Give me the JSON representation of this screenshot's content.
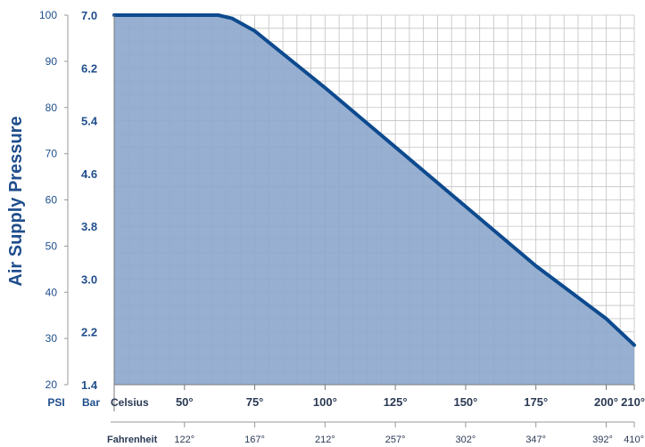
{
  "chart_data": {
    "type": "area",
    "title": "",
    "ylabel": "Air Supply Pressure",
    "y_psi": {
      "unit_label": "PSI",
      "range": [
        20,
        100
      ],
      "ticks": [
        20,
        30,
        40,
        50,
        60,
        70,
        80,
        90,
        100
      ]
    },
    "y_bar": {
      "unit_label": "Bar",
      "range": [
        1.4,
        7.0
      ],
      "ticks": [
        {
          "value": 1.4,
          "label": "1.4"
        },
        {
          "value": 2.2,
          "label": "2.2"
        },
        {
          "value": 3.0,
          "label": "3.0"
        },
        {
          "value": 3.8,
          "label": "3.8"
        },
        {
          "value": 4.6,
          "label": "4.6"
        },
        {
          "value": 5.4,
          "label": "5.4"
        },
        {
          "value": 6.2,
          "label": "6.2"
        },
        {
          "value": 7.0,
          "label": "7.0"
        }
      ]
    },
    "x_celsius": {
      "unit_label": "Celsius",
      "range": [
        25,
        210
      ],
      "ticks": [
        {
          "value": 50,
          "label": "50°"
        },
        {
          "value": 75,
          "label": "75°"
        },
        {
          "value": 100,
          "label": "100°"
        },
        {
          "value": 125,
          "label": "125°"
        },
        {
          "value": 150,
          "label": "150°"
        },
        {
          "value": 175,
          "label": "175°"
        },
        {
          "value": 200,
          "label": "200°"
        },
        {
          "value": 210,
          "label": "210°"
        }
      ]
    },
    "x_fahrenheit": {
      "unit_label": "Fahrenheit",
      "ticks": [
        {
          "celsius": 50,
          "label": "122°"
        },
        {
          "celsius": 75,
          "label": "167°"
        },
        {
          "celsius": 100,
          "label": "212°"
        },
        {
          "celsius": 125,
          "label": "257°"
        },
        {
          "celsius": 150,
          "label": "302°"
        },
        {
          "celsius": 175,
          "label": "347°"
        },
        {
          "celsius": 200,
          "label": "392°"
        },
        {
          "celsius": 210,
          "label": "410°"
        }
      ]
    },
    "series": [
      {
        "points": [
          {
            "x": 25,
            "y": 7.0
          },
          {
            "x": 62,
            "y": 7.0
          },
          {
            "x": 67,
            "y": 6.95
          },
          {
            "x": 75,
            "y": 6.76
          },
          {
            "x": 100,
            "y": 5.9
          },
          {
            "x": 125,
            "y": 5.0
          },
          {
            "x": 150,
            "y": 4.1
          },
          {
            "x": 175,
            "y": 3.2
          },
          {
            "x": 200,
            "y": 2.4
          },
          {
            "x": 210,
            "y": 2.0
          }
        ]
      }
    ],
    "grid": true,
    "colors": {
      "fill": "#8ea8cc",
      "line": "#0d4a8f",
      "grid": "#c2c2c2",
      "axis_text": "#1f4e8c"
    }
  }
}
